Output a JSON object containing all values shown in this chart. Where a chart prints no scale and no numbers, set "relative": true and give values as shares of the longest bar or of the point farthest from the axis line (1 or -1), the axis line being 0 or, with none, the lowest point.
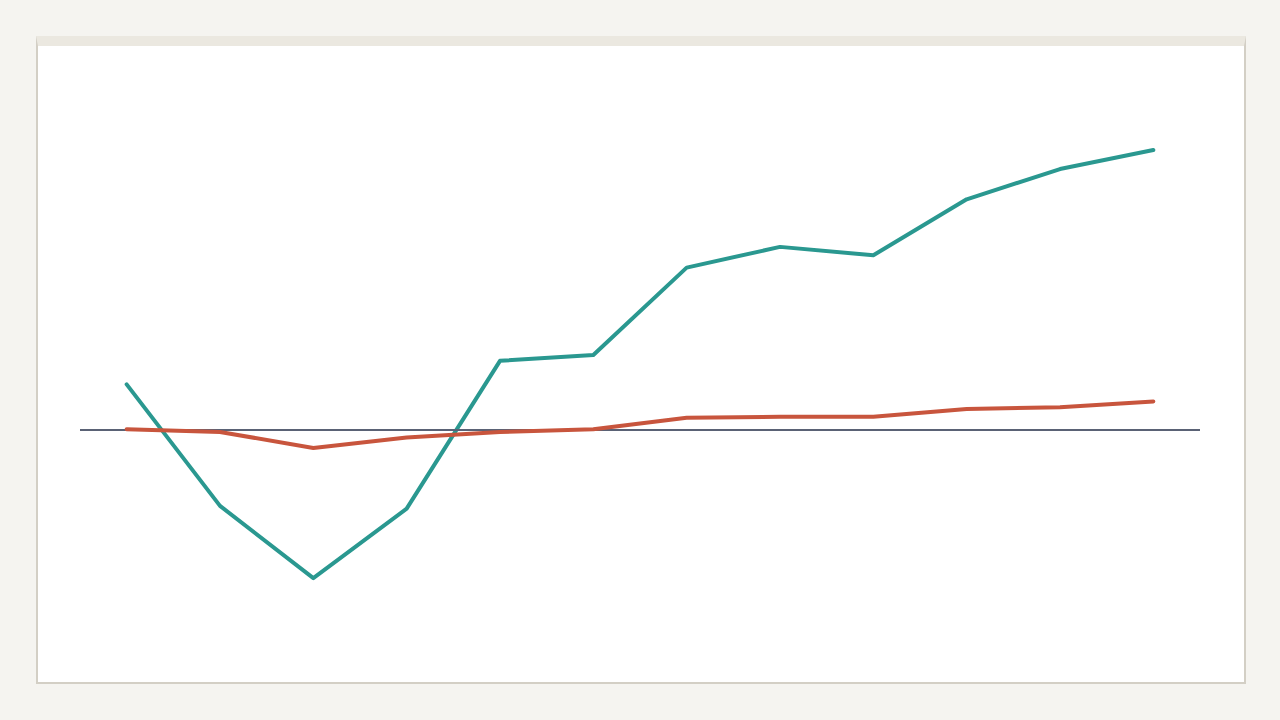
{
  "chart_data": {
    "type": "line",
    "relative": true,
    "line_style": "solid",
    "marker": "none",
    "categories": [
      null,
      null,
      null,
      null,
      null,
      null,
      null,
      null,
      null,
      null,
      null,
      null
    ],
    "series": [
      {
        "color": "#2a9890",
        "values": [
          0.163,
          -0.271,
          -0.529,
          -0.281,
          0.247,
          0.268,
          0.58,
          0.654,
          0.624,
          0.824,
          0.932,
          1
        ]
      },
      {
        "color": "#c8553d",
        "values": [
          0.003,
          -0.007,
          -0.064,
          -0.027,
          -0.007,
          0.003,
          0.044,
          0.047,
          0.047,
          0.075,
          0.081,
          0.102
        ]
      }
    ]
  }
}
